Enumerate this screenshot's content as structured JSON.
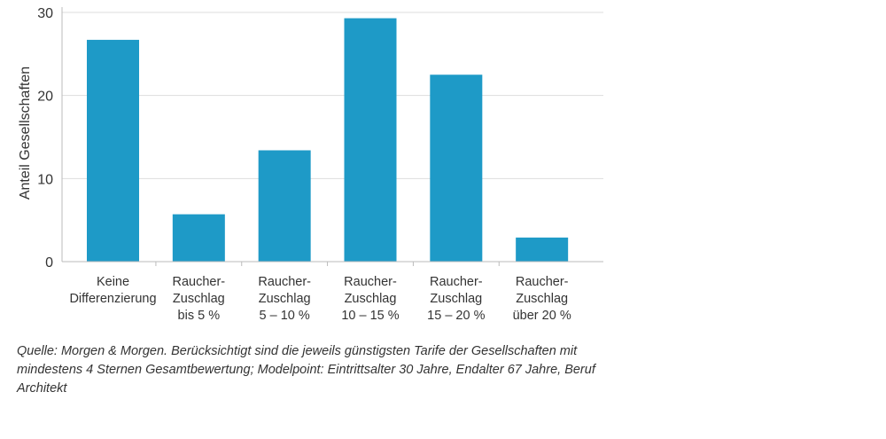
{
  "chart_data": {
    "type": "bar",
    "categories": [
      [
        "Keine",
        "Differenzierung"
      ],
      [
        "Raucher-",
        "Zuschlag",
        "bis 5 %"
      ],
      [
        "Raucher-",
        "Zuschlag",
        "5 – 10  %"
      ],
      [
        "Raucher-",
        "Zuschlag",
        "10 – 15 %"
      ],
      [
        "Raucher-",
        "Zuschlag",
        "15 – 20 %"
      ],
      [
        "Raucher-",
        "Zuschlag",
        "über 20 %"
      ]
    ],
    "values": [
      26.7,
      5.7,
      13.4,
      29.3,
      22.5,
      2.9
    ],
    "ylabel": "Anteil Gesellschaften",
    "ylim": [
      0,
      30
    ],
    "yticks": [
      "0",
      "10",
      "20",
      "30"
    ],
    "grid": true,
    "bar_color": "#1e9ac7",
    "grid_color": "#dddddd"
  },
  "source": "Quelle: Morgen & Morgen. Berücksichtigt sind die jeweils günstigsten Tarife der Gesellschaften mit mindestens 4 Sternen Gesamtbewertung; Modelpoint: Eintrittsalter 30 Jahre, Endalter 67 Jahre, Beruf Architekt"
}
